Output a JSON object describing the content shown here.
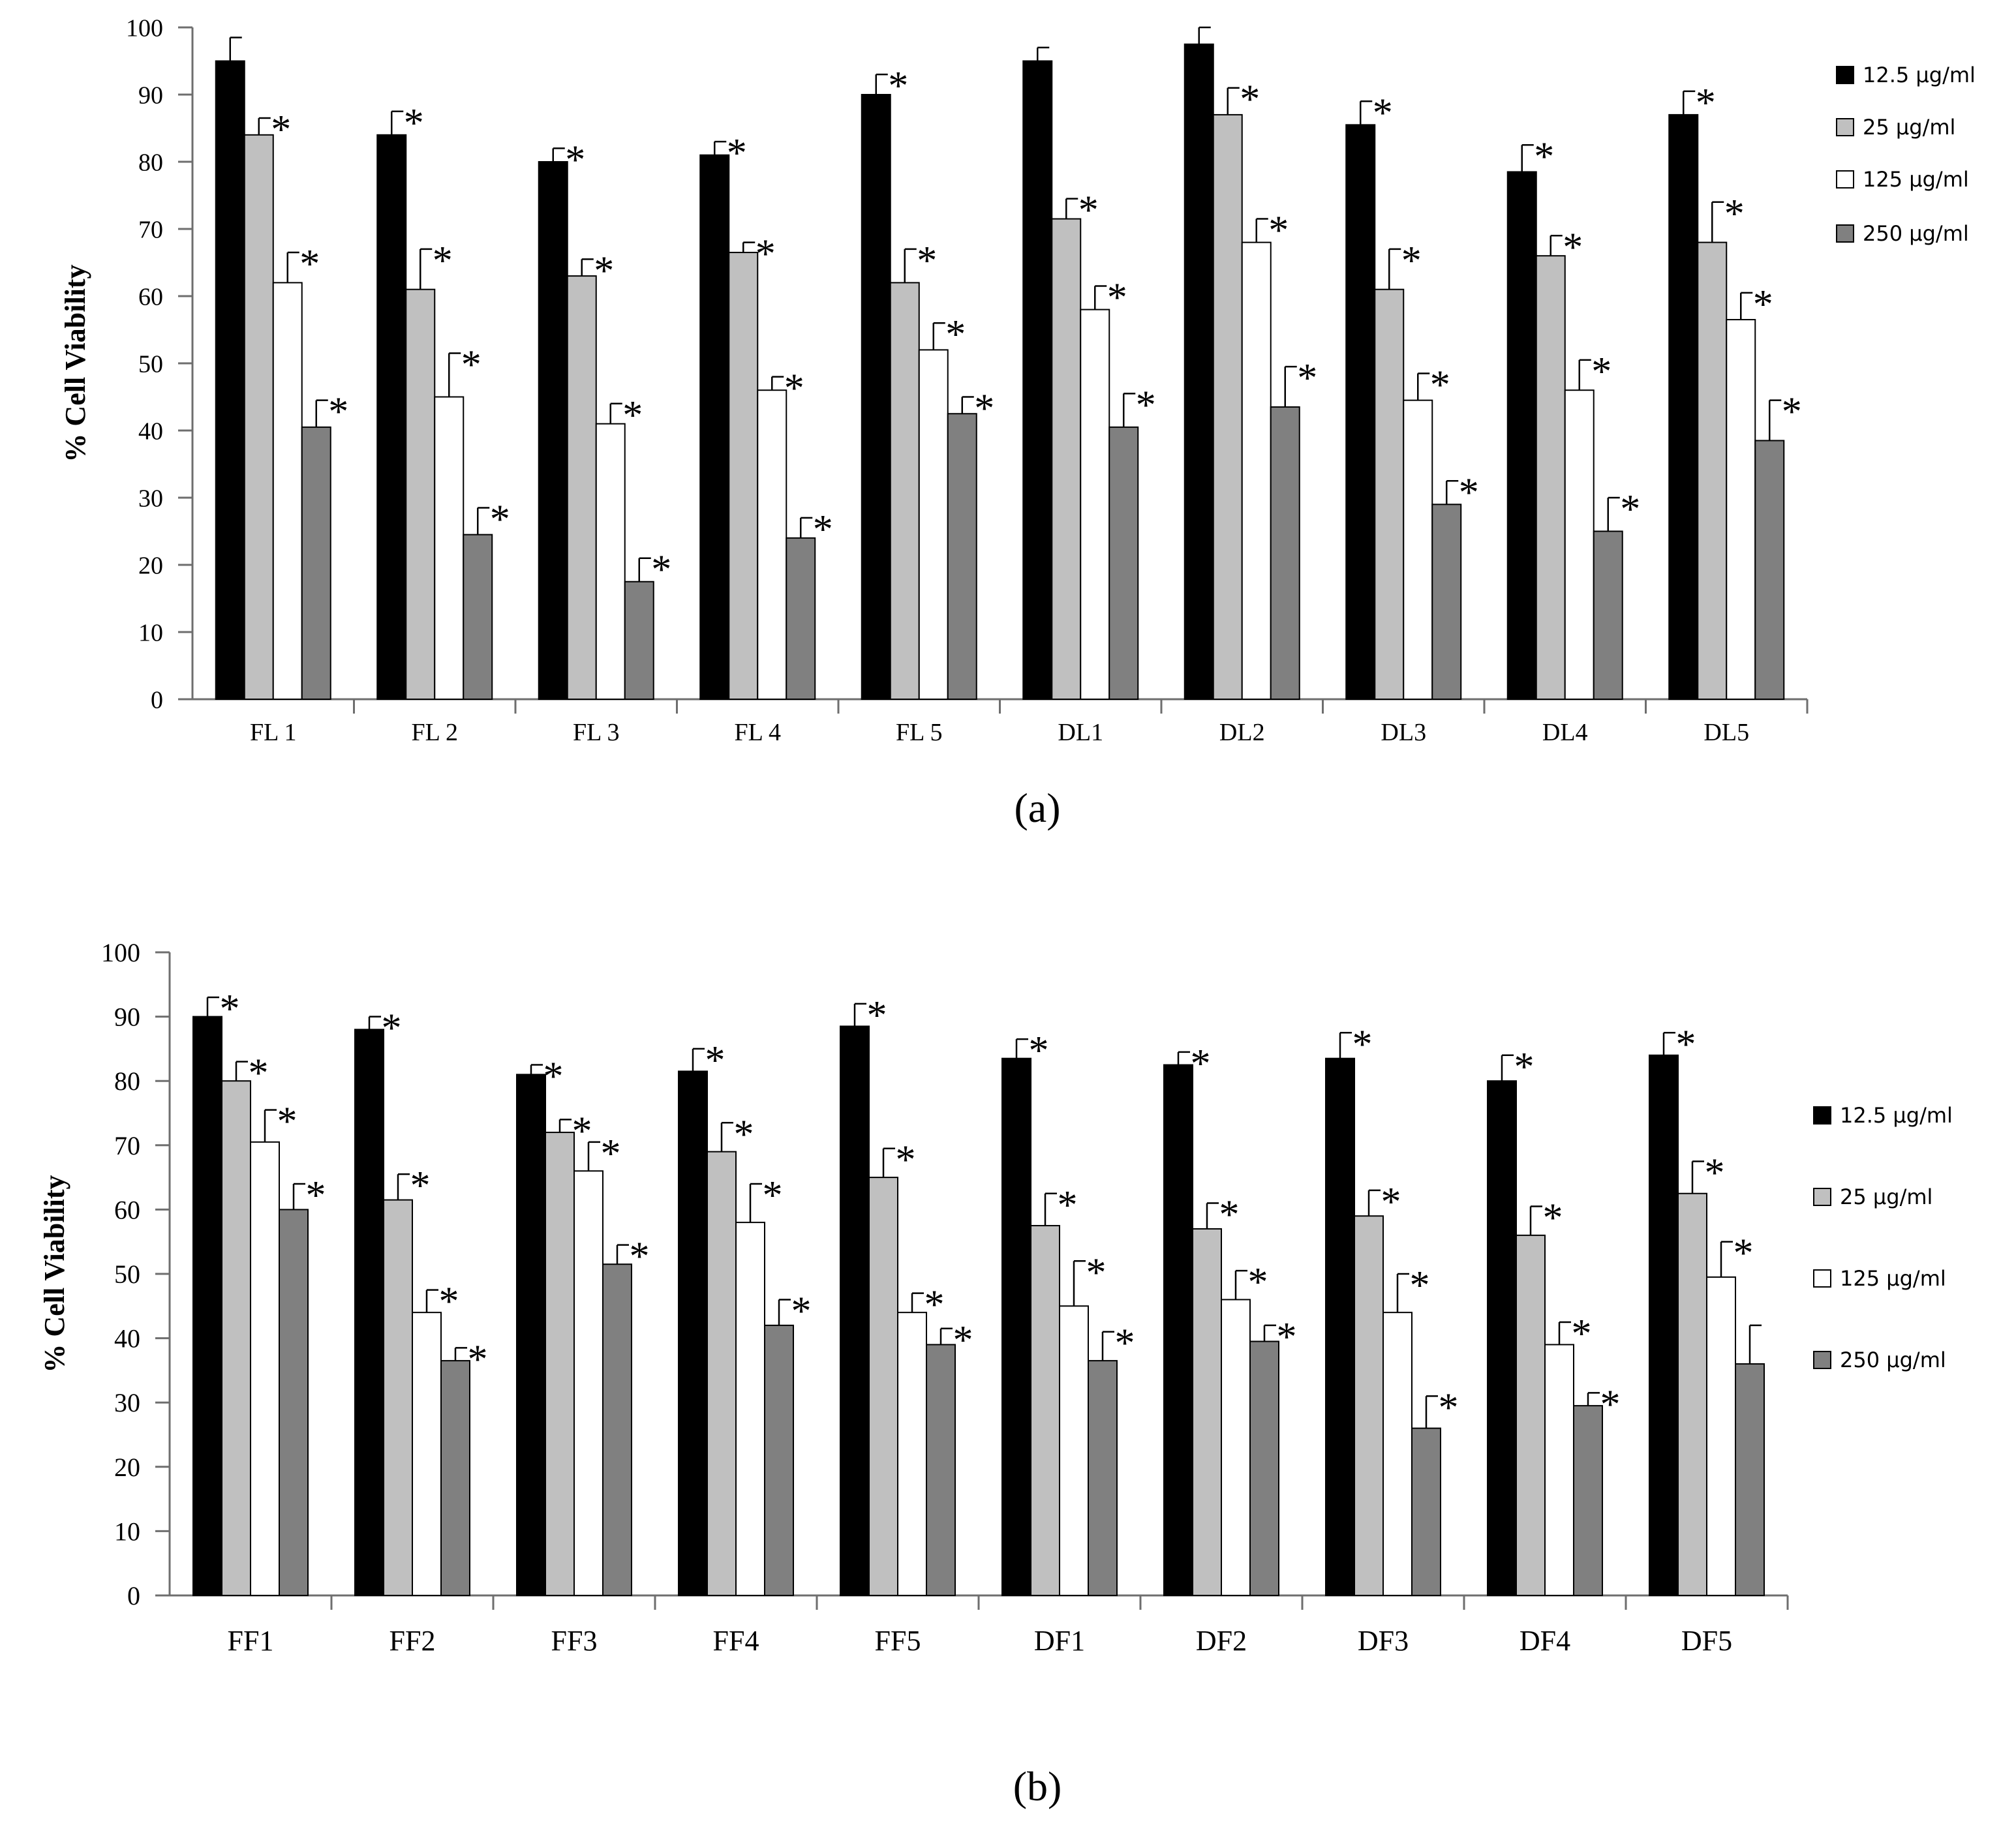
{
  "colors": {
    "12.5 µg/ml": "#000000",
    "25 µg/ml": "#c0c0c0",
    "125 µg/ml": "#ffffff",
    "250 µg/ml": "#808080",
    "axis": "#6e6e6e",
    "text": "#000000"
  },
  "chart_data": [
    {
      "type": "bar",
      "panel_label": "(a)",
      "ylabel": "% Cell Viability",
      "xlabel": "",
      "ylim": [
        0,
        100
      ],
      "yticks": [
        "0",
        "10",
        "20",
        "30",
        "40",
        "50",
        "60",
        "70",
        "80",
        "90",
        "100"
      ],
      "grid": false,
      "legend_position": "right",
      "significance_marker": "*",
      "categories": [
        "FL 1",
        "FL 2",
        "FL 3",
        "FL 4",
        "FL 5",
        "DL1",
        "DL2",
        "DL3",
        "DL4",
        "DL5"
      ],
      "series": [
        {
          "name": "12.5 µg/ml",
          "values": [
            95,
            84,
            80,
            81,
            90,
            95,
            97.5,
            85.5,
            78.5,
            87
          ],
          "errors": [
            3.5,
            3.5,
            2,
            2,
            3,
            2,
            2.5,
            3.5,
            4,
            3.5
          ],
          "significant": [
            false,
            true,
            true,
            true,
            true,
            false,
            false,
            true,
            true,
            true
          ]
        },
        {
          "name": "25 µg/ml",
          "values": [
            84,
            61,
            63,
            66.5,
            62,
            71.5,
            87,
            61,
            66,
            68
          ],
          "errors": [
            2.5,
            6,
            2.5,
            1.5,
            5,
            3,
            4,
            6,
            3,
            6
          ],
          "significant": [
            true,
            true,
            true,
            true,
            true,
            true,
            true,
            true,
            true,
            true
          ]
        },
        {
          "name": "125 µg/ml",
          "values": [
            62,
            45,
            41,
            46,
            52,
            58,
            68,
            44.5,
            46,
            56.5
          ],
          "errors": [
            4.5,
            6.5,
            3,
            2,
            4,
            3.5,
            3.5,
            4,
            4.5,
            4
          ],
          "significant": [
            true,
            true,
            true,
            true,
            true,
            true,
            true,
            true,
            true,
            true
          ]
        },
        {
          "name": "250 µg/ml",
          "values": [
            40.5,
            24.5,
            17.5,
            24,
            42.5,
            40.5,
            43.5,
            29,
            25,
            38.5
          ],
          "errors": [
            4,
            4,
            3.5,
            3,
            2.5,
            5,
            6,
            3.5,
            5,
            6
          ],
          "significant": [
            true,
            true,
            true,
            true,
            true,
            true,
            true,
            true,
            true,
            true
          ]
        }
      ]
    },
    {
      "type": "bar",
      "panel_label": "(b)",
      "ylabel": "% Cell Viability",
      "xlabel": "",
      "ylim": [
        0,
        100
      ],
      "yticks": [
        "0",
        "10",
        "20",
        "30",
        "40",
        "50",
        "60",
        "70",
        "80",
        "90",
        "100"
      ],
      "grid": false,
      "legend_position": "right",
      "significance_marker": "*",
      "categories": [
        "FF1",
        "FF2",
        "FF3",
        "FF4",
        "FF5",
        "DF1",
        "DF2",
        "DF3",
        "DF4",
        "DF5"
      ],
      "series": [
        {
          "name": "12.5 µg/ml",
          "values": [
            90,
            88,
            81,
            81.5,
            88.5,
            83.5,
            82.5,
            83.5,
            80,
            84
          ],
          "errors": [
            3,
            2,
            1.5,
            3.5,
            3.5,
            3,
            2,
            4,
            4,
            3.5
          ],
          "significant": [
            true,
            true,
            true,
            true,
            true,
            true,
            true,
            true,
            true,
            true
          ]
        },
        {
          "name": "25 µg/ml",
          "values": [
            80,
            61.5,
            72,
            69,
            65,
            57.5,
            57,
            59,
            56,
            62.5
          ],
          "errors": [
            3,
            4,
            2,
            4.5,
            4.5,
            5,
            4,
            4,
            4.5,
            5
          ],
          "significant": [
            true,
            true,
            true,
            true,
            true,
            true,
            true,
            true,
            true,
            true
          ]
        },
        {
          "name": "125 µg/ml",
          "values": [
            70.5,
            44,
            66,
            58,
            44,
            45,
            46,
            44,
            39,
            49.5
          ],
          "errors": [
            5,
            3.5,
            4.5,
            6,
            3,
            7,
            4.5,
            6,
            3.5,
            5.5
          ],
          "significant": [
            true,
            true,
            true,
            true,
            true,
            true,
            true,
            true,
            true,
            true
          ]
        },
        {
          "name": "250 µg/ml",
          "values": [
            60,
            36.5,
            51.5,
            42,
            39,
            36.5,
            39.5,
            26,
            29.5,
            36
          ],
          "errors": [
            4,
            2,
            3,
            4,
            2.5,
            4.5,
            2.5,
            5,
            2,
            6
          ],
          "significant": [
            true,
            true,
            true,
            true,
            true,
            true,
            true,
            true,
            true,
            false
          ]
        }
      ]
    }
  ]
}
